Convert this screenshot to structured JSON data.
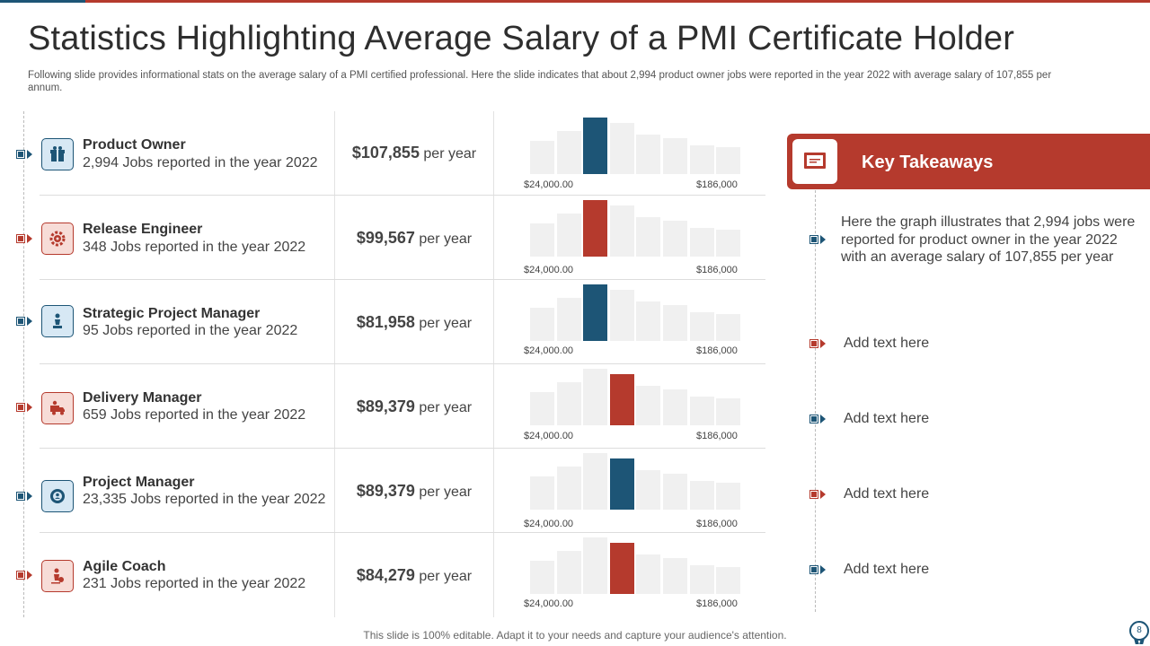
{
  "title": "Statistics Highlighting Average Salary of a PMI Certificate Holder",
  "subtitle": "Following slide provides informational stats on the average salary of a PMI certified professional. Here the slide indicates that about 2,994 product owner jobs were reported in the year 2022 with average salary of 107,855 per annum.",
  "colors": {
    "blue": "#1d5576",
    "red": "#b53a2d",
    "bar_background": "#f0f0f0"
  },
  "rows": [
    {
      "title": "Product Owner",
      "jobs": "2,994 Jobs reported in the year 2022",
      "salary": "$107,855",
      "per": "per year",
      "icon": "gift-box-icon",
      "color": "blue",
      "axis_min": "$24,000.00",
      "axis_max": "$186,000"
    },
    {
      "title": "Release Engineer",
      "jobs": "348 Jobs reported in the year 2022",
      "salary": "$99,567",
      "per": "per year",
      "icon": "gear-icon",
      "color": "red",
      "axis_min": "$24,000.00",
      "axis_max": "$186,000"
    },
    {
      "title": "Strategic Project Manager",
      "jobs": "95 Jobs reported in the year 2022",
      "salary": "$81,958",
      "per": "per year",
      "icon": "chess-piece-icon",
      "color": "blue",
      "axis_min": "$24,000.00",
      "axis_max": "$186,000"
    },
    {
      "title": "Delivery Manager",
      "jobs": "659 Jobs reported in the year 2022",
      "salary": "$89,379",
      "per": "per year",
      "icon": "delivery-truck-icon",
      "color": "red",
      "axis_min": "$24,000.00",
      "axis_max": "$186,000"
    },
    {
      "title": "Project Manager",
      "jobs": "23,335 Jobs reported in the year 2022",
      "salary": "$89,379",
      "per": "per year",
      "icon": "settings-cog-icon",
      "color": "blue",
      "axis_min": "$24,000.00",
      "axis_max": "$186,000"
    },
    {
      "title": "Agile Coach",
      "jobs": "231 Jobs reported in the year 2022",
      "salary": "$84,279",
      "per": "per year",
      "icon": "person-coach-icon",
      "color": "red",
      "axis_min": "$24,000.00",
      "axis_max": "$186,000"
    }
  ],
  "chart_data": [
    {
      "type": "bar",
      "highlight_index": 2,
      "highlight_color": "#1d5576",
      "values": [
        37,
        48,
        63,
        57,
        44,
        40,
        32,
        30
      ]
    },
    {
      "type": "bar",
      "highlight_index": 2,
      "highlight_color": "#b53a2d",
      "values": [
        37,
        48,
        63,
        57,
        44,
        40,
        32,
        30
      ]
    },
    {
      "type": "bar",
      "highlight_index": 2,
      "highlight_color": "#1d5576",
      "values": [
        37,
        48,
        63,
        57,
        44,
        40,
        32,
        30
      ]
    },
    {
      "type": "bar",
      "highlight_index": 3,
      "highlight_color": "#b53a2d",
      "values": [
        37,
        48,
        63,
        57,
        44,
        40,
        32,
        30
      ]
    },
    {
      "type": "bar",
      "highlight_index": 3,
      "highlight_color": "#1d5576",
      "values": [
        37,
        48,
        63,
        57,
        44,
        40,
        32,
        30
      ]
    },
    {
      "type": "bar",
      "highlight_index": 3,
      "highlight_color": "#b53a2d",
      "values": [
        37,
        48,
        63,
        57,
        44,
        40,
        32,
        30
      ]
    }
  ],
  "key_takeaways": {
    "title": "Key Takeaways",
    "icon": "presentation-board-icon",
    "main_text": "Here the graph illustrates that 2,994 jobs were reported for product owner in the year 2022 with an average salary of 107,855 per year",
    "items": [
      "Add text here",
      "Add text here",
      "Add text here",
      "Add text here"
    ]
  },
  "footer": "This slide is 100% editable. Adapt it to your needs and capture your audience's attention.",
  "page_number": "8"
}
